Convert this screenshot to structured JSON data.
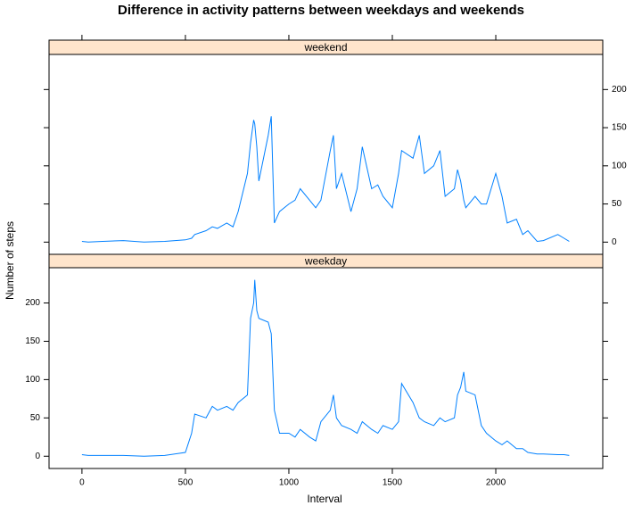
{
  "chart_data": {
    "type": "line",
    "title": "Difference in activity patterns between weekdays and weekends",
    "xlabel": "Interval",
    "ylabel": "Number of steps",
    "xlim": [
      -159,
      2517
    ],
    "ylim": [
      -16,
      246
    ],
    "xticks": [
      0,
      500,
      1000,
      1500,
      2000
    ],
    "yticks": [
      0,
      50,
      100,
      150,
      200
    ],
    "x": [
      0,
      30,
      100,
      200,
      300,
      400,
      500,
      530,
      545,
      600,
      630,
      655,
      700,
      730,
      755,
      800,
      815,
      830,
      835,
      845,
      855,
      900,
      915,
      930,
      955,
      1000,
      1030,
      1055,
      1100,
      1130,
      1155,
      1200,
      1215,
      1230,
      1255,
      1300,
      1330,
      1355,
      1400,
      1430,
      1455,
      1500,
      1530,
      1545,
      1600,
      1630,
      1655,
      1700,
      1730,
      1755,
      1800,
      1815,
      1830,
      1845,
      1855,
      1900,
      1930,
      1955,
      2000,
      2030,
      2055,
      2100,
      2130,
      2155,
      2200,
      2230,
      2300,
      2330,
      2355
    ],
    "series": [
      {
        "name": "weekend",
        "color": "#0080ff",
        "values": [
          1,
          0,
          1,
          2,
          0,
          1,
          3,
          5,
          10,
          15,
          20,
          18,
          25,
          20,
          40,
          90,
          130,
          160,
          155,
          125,
          80,
          140,
          165,
          25,
          40,
          50,
          55,
          70,
          55,
          45,
          55,
          120,
          140,
          70,
          90,
          40,
          70,
          125,
          70,
          75,
          60,
          45,
          90,
          120,
          110,
          140,
          90,
          100,
          120,
          60,
          70,
          95,
          80,
          55,
          45,
          60,
          50,
          50,
          90,
          60,
          25,
          30,
          10,
          15,
          1,
          2,
          10,
          5,
          1
        ]
      },
      {
        "name": "weekday",
        "color": "#0080ff",
        "values": [
          2,
          1,
          1,
          1,
          0,
          1,
          5,
          30,
          55,
          50,
          65,
          60,
          65,
          60,
          70,
          80,
          180,
          200,
          230,
          190,
          180,
          175,
          160,
          60,
          30,
          30,
          25,
          35,
          25,
          20,
          45,
          60,
          80,
          50,
          40,
          35,
          30,
          45,
          35,
          30,
          40,
          35,
          45,
          95,
          70,
          50,
          45,
          40,
          50,
          45,
          50,
          80,
          90,
          110,
          85,
          80,
          40,
          30,
          20,
          15,
          20,
          10,
          10,
          5,
          3,
          3,
          2,
          2,
          1
        ]
      }
    ]
  }
}
